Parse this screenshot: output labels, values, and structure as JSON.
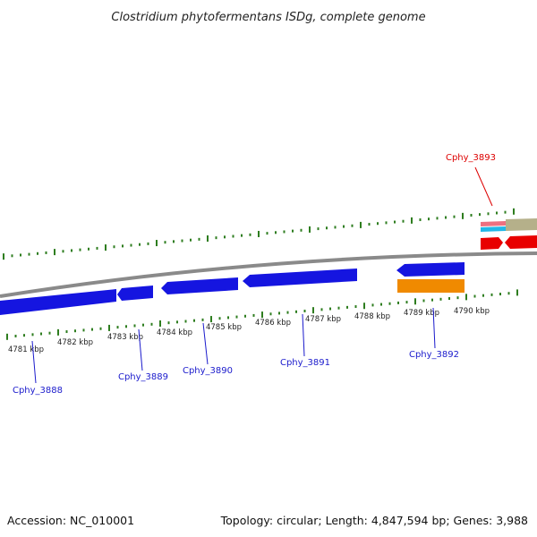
{
  "title": "Clostridium phytofermentans ISDg, complete genome",
  "footer": {
    "accession": "Accession: NC_010001",
    "summary": "Topology: circular; Length: 4,847,594 bp; Genes: 3,988"
  },
  "scale_labels": [
    "4781 kbp",
    "4782 kbp",
    "4783 kbp",
    "4784 kbp",
    "4785 kbp",
    "4786 kbp",
    "4787 kbp",
    "4788 kbp",
    "4789 kbp",
    "4790 kbp"
  ],
  "gene_labels": [
    "Cphy_3888",
    "Cphy_3889",
    "Cphy_3890",
    "Cphy_3891",
    "Cphy_3892",
    "Cphy_3893"
  ],
  "colors": {
    "backbone": "#8a8a8a",
    "ticks": "#2e7d1f",
    "cds": "#1515e0",
    "cds_highlight": "#f08a00",
    "rna_red": "#e80000",
    "misc_feature": "#b5b08a",
    "pink_feature": "#ee7080",
    "cyan_feature": "#22b8e8",
    "label_blue": "#1a1acc",
    "label_red": "#dd0000"
  }
}
